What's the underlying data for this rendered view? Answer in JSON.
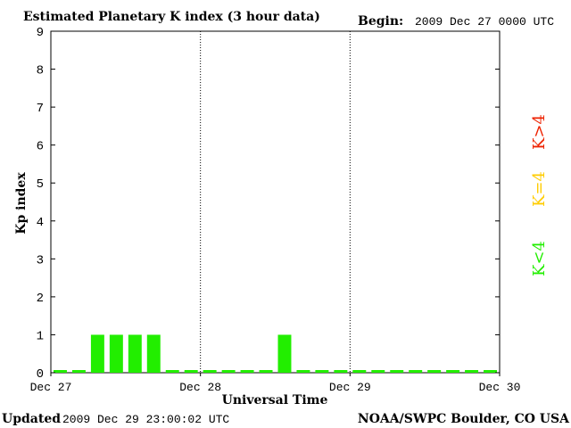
{
  "chart_data": {
    "type": "bar",
    "title": "Estimated Planetary K index (3 hour data)",
    "begin_label": "Begin:",
    "begin_value": "2009 Dec 27 0000 UTC",
    "xlabel": "Universal Time",
    "ylabel": "Kp index",
    "ylim": [
      0,
      9
    ],
    "yticks": [
      "0",
      "1",
      "2",
      "3",
      "4",
      "5",
      "6",
      "7",
      "8",
      "9"
    ],
    "xticks": [
      "Dec 27",
      "Dec 28",
      "Dec 29",
      "Dec 30"
    ],
    "day_dividers_after_bar": [
      8,
      16
    ],
    "values": [
      0,
      0,
      1,
      1,
      1,
      1,
      0,
      0,
      0,
      0,
      0,
      0,
      1,
      0,
      0,
      0,
      0,
      0,
      0,
      0,
      0,
      0,
      0,
      0
    ],
    "bar_color": "#22ee00",
    "grid": false,
    "legend": [
      {
        "label": "K<4",
        "color": "#22ee00"
      },
      {
        "label": "K=4",
        "color": "#ffcc00"
      },
      {
        "label": "K>4",
        "color": "#ee2200"
      }
    ]
  },
  "footer": {
    "updated_label": "Updated",
    "updated_value": "2009 Dec 29 23:00:02 UTC",
    "credit": "NOAA/SWPC Boulder, CO USA"
  }
}
